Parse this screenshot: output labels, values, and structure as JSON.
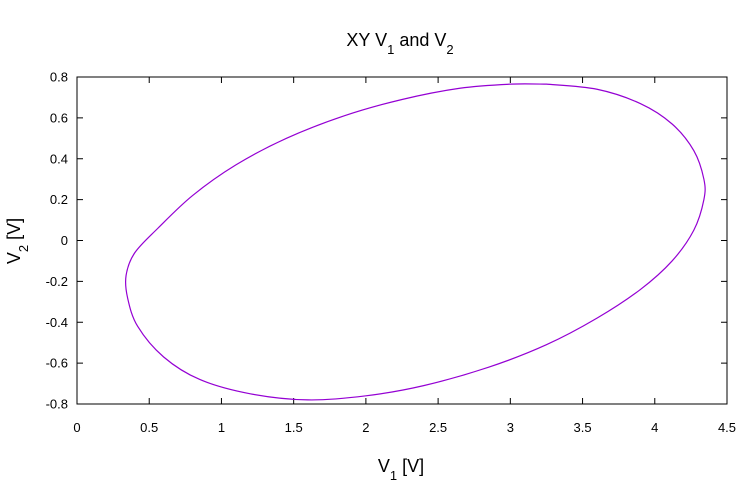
{
  "chart_data": {
    "type": "line",
    "title": {
      "main": "XY V",
      "sub1": "1",
      "mid": " and V",
      "sub2": "2"
    },
    "xlabel": {
      "main": "V",
      "sub": "1",
      "unit": " [V]"
    },
    "ylabel": {
      "main": "V",
      "sub": "2",
      "unit": " [V]"
    },
    "xlim": [
      0,
      4.5
    ],
    "ylim": [
      -0.8,
      0.8
    ],
    "x_ticks": [
      0,
      0.5,
      1,
      1.5,
      2,
      2.5,
      3,
      3.5,
      4,
      4.5
    ],
    "x_tick_labels": [
      "0",
      "0.5",
      "1",
      "1.5",
      "2",
      "2.5",
      "3",
      "3.5",
      "4",
      "4.5"
    ],
    "y_ticks": [
      -0.8,
      -0.6,
      -0.4,
      -0.2,
      0,
      0.2,
      0.4,
      0.6,
      0.8
    ],
    "y_tick_labels": [
      "-0.8",
      "-0.6",
      "-0.4",
      "-0.2",
      "0",
      "0.2",
      "0.4",
      "0.6",
      "0.8"
    ],
    "grid": false,
    "legend": "none",
    "series": [
      {
        "color": "#9400d3",
        "closed": true,
        "x": [
          3.25,
          3.6,
          3.9,
          4.12,
          4.27,
          4.34,
          4.34,
          4.27,
          4.12,
          3.9,
          3.6,
          3.25,
          2.85,
          2.4,
          2.0,
          1.6,
          1.2,
          0.85,
          0.6,
          0.42,
          0.35,
          0.34,
          0.4,
          0.56,
          0.8,
          1.1,
          1.45,
          1.85,
          2.25,
          2.65,
          3.0,
          3.25
        ],
        "y": [
          0.765,
          0.74,
          0.67,
          0.57,
          0.44,
          0.3,
          0.2,
          0.05,
          -0.1,
          -0.24,
          -0.38,
          -0.51,
          -0.62,
          -0.71,
          -0.76,
          -0.78,
          -0.75,
          -0.68,
          -0.57,
          -0.42,
          -0.28,
          -0.17,
          -0.06,
          0.06,
          0.22,
          0.37,
          0.5,
          0.61,
          0.69,
          0.745,
          0.765,
          0.765
        ]
      }
    ]
  }
}
